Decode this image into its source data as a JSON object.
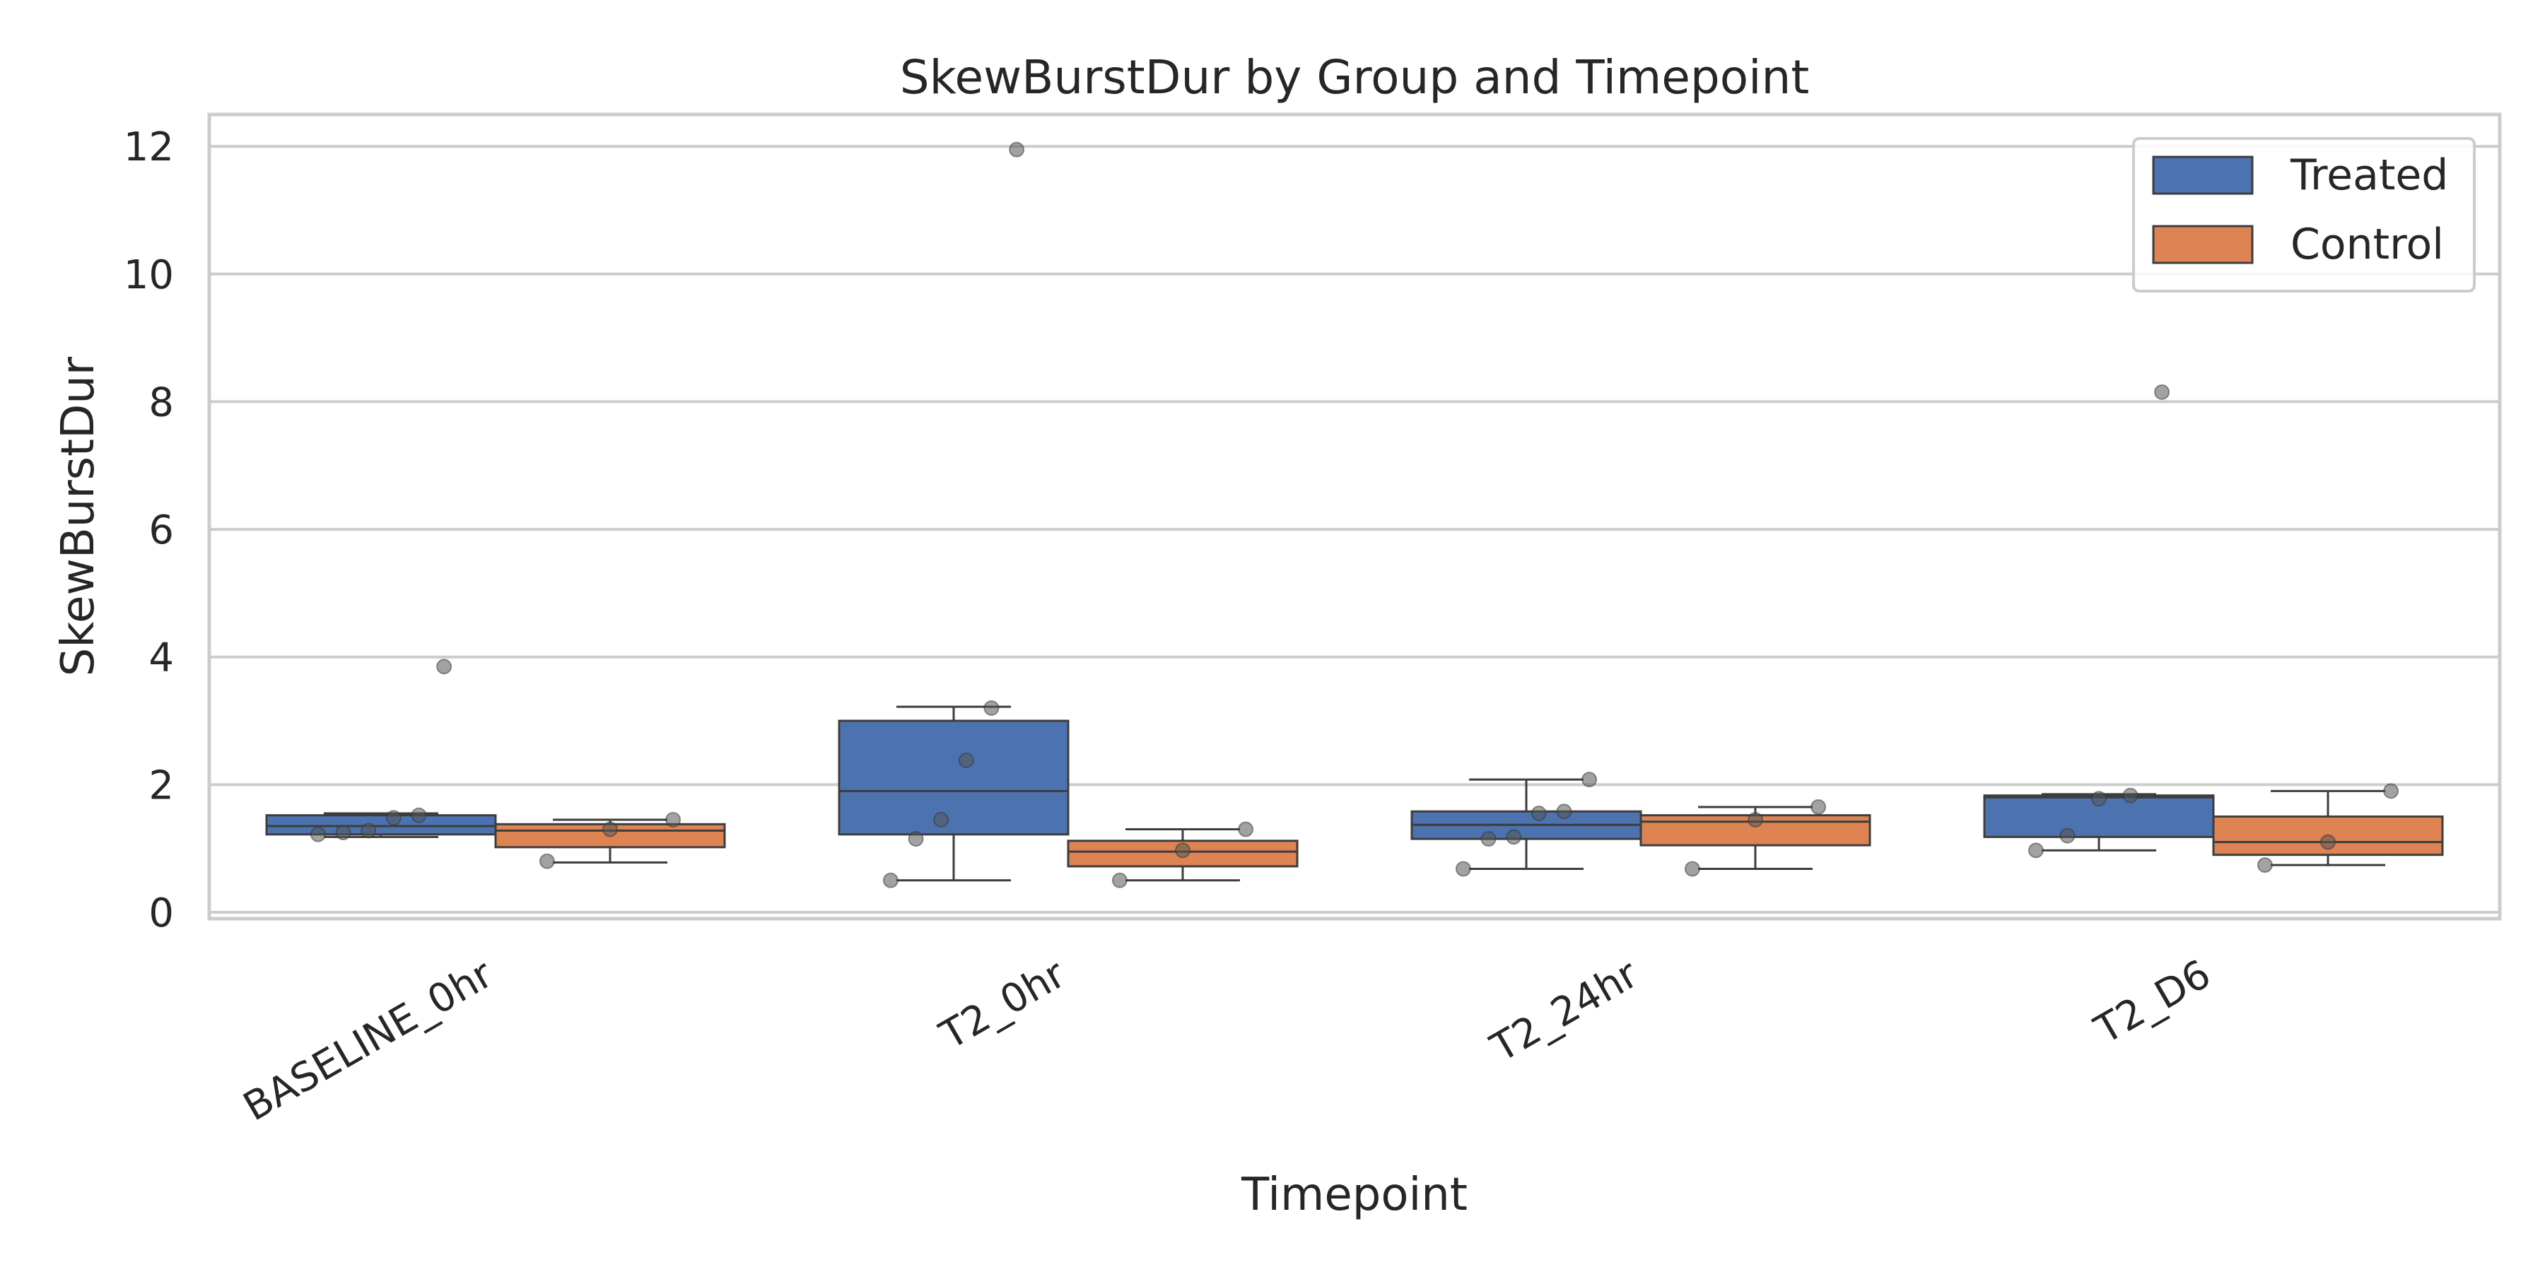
{
  "chart_data": {
    "type": "box",
    "title": "SkewBurstDur by Group and Timepoint",
    "xlabel": "Timepoint",
    "ylabel": "SkewBurstDur",
    "categories": [
      "BASELINE_0hr",
      "T2_0hr",
      "T2_24hr",
      "T2_D6"
    ],
    "ylim": [
      -0.1,
      12.5
    ],
    "yticks": [
      0,
      2,
      4,
      6,
      8,
      10,
      12
    ],
    "grid": "horizontal",
    "legend_position": "top-right",
    "series": [
      {
        "name": "Treated",
        "color": "#4c72b0",
        "boxes": [
          {
            "whisker_low": 1.18,
            "q1": 1.22,
            "median": 1.35,
            "q3": 1.52,
            "whisker_high": 1.55,
            "outliers": [
              3.85
            ]
          },
          {
            "whisker_low": 0.5,
            "q1": 1.22,
            "median": 1.9,
            "q3": 3.0,
            "whisker_high": 3.22,
            "outliers": [
              11.95
            ]
          },
          {
            "whisker_low": 0.68,
            "q1": 1.15,
            "median": 1.37,
            "q3": 1.58,
            "whisker_high": 2.08,
            "outliers": []
          },
          {
            "whisker_low": 0.97,
            "q1": 1.18,
            "median": 1.8,
            "q3": 1.83,
            "whisker_high": 1.85,
            "outliers": [
              8.15
            ]
          }
        ],
        "points": [
          [
            1.22,
            1.25,
            1.28,
            1.48,
            1.52,
            3.85
          ],
          [
            0.5,
            1.15,
            1.45,
            2.38,
            3.2,
            11.95
          ],
          [
            0.68,
            1.15,
            1.18,
            1.55,
            1.58,
            2.08
          ],
          [
            0.97,
            1.2,
            1.78,
            1.83,
            8.15
          ]
        ]
      },
      {
        "name": "Control",
        "color": "#dd8452",
        "boxes": [
          {
            "whisker_low": 0.78,
            "q1": 1.02,
            "median": 1.28,
            "q3": 1.38,
            "whisker_high": 1.45,
            "outliers": []
          },
          {
            "whisker_low": 0.5,
            "q1": 0.72,
            "median": 0.95,
            "q3": 1.12,
            "whisker_high": 1.3,
            "outliers": []
          },
          {
            "whisker_low": 0.68,
            "q1": 1.05,
            "median": 1.42,
            "q3": 1.52,
            "whisker_high": 1.65,
            "outliers": []
          },
          {
            "whisker_low": 0.74,
            "q1": 0.9,
            "median": 1.1,
            "q3": 1.5,
            "whisker_high": 1.9,
            "outliers": []
          }
        ],
        "points": [
          [
            0.8,
            1.3,
            1.45
          ],
          [
            0.5,
            0.97,
            1.3
          ],
          [
            0.68,
            1.45,
            1.65
          ],
          [
            0.74,
            1.1,
            1.9
          ]
        ]
      }
    ]
  }
}
